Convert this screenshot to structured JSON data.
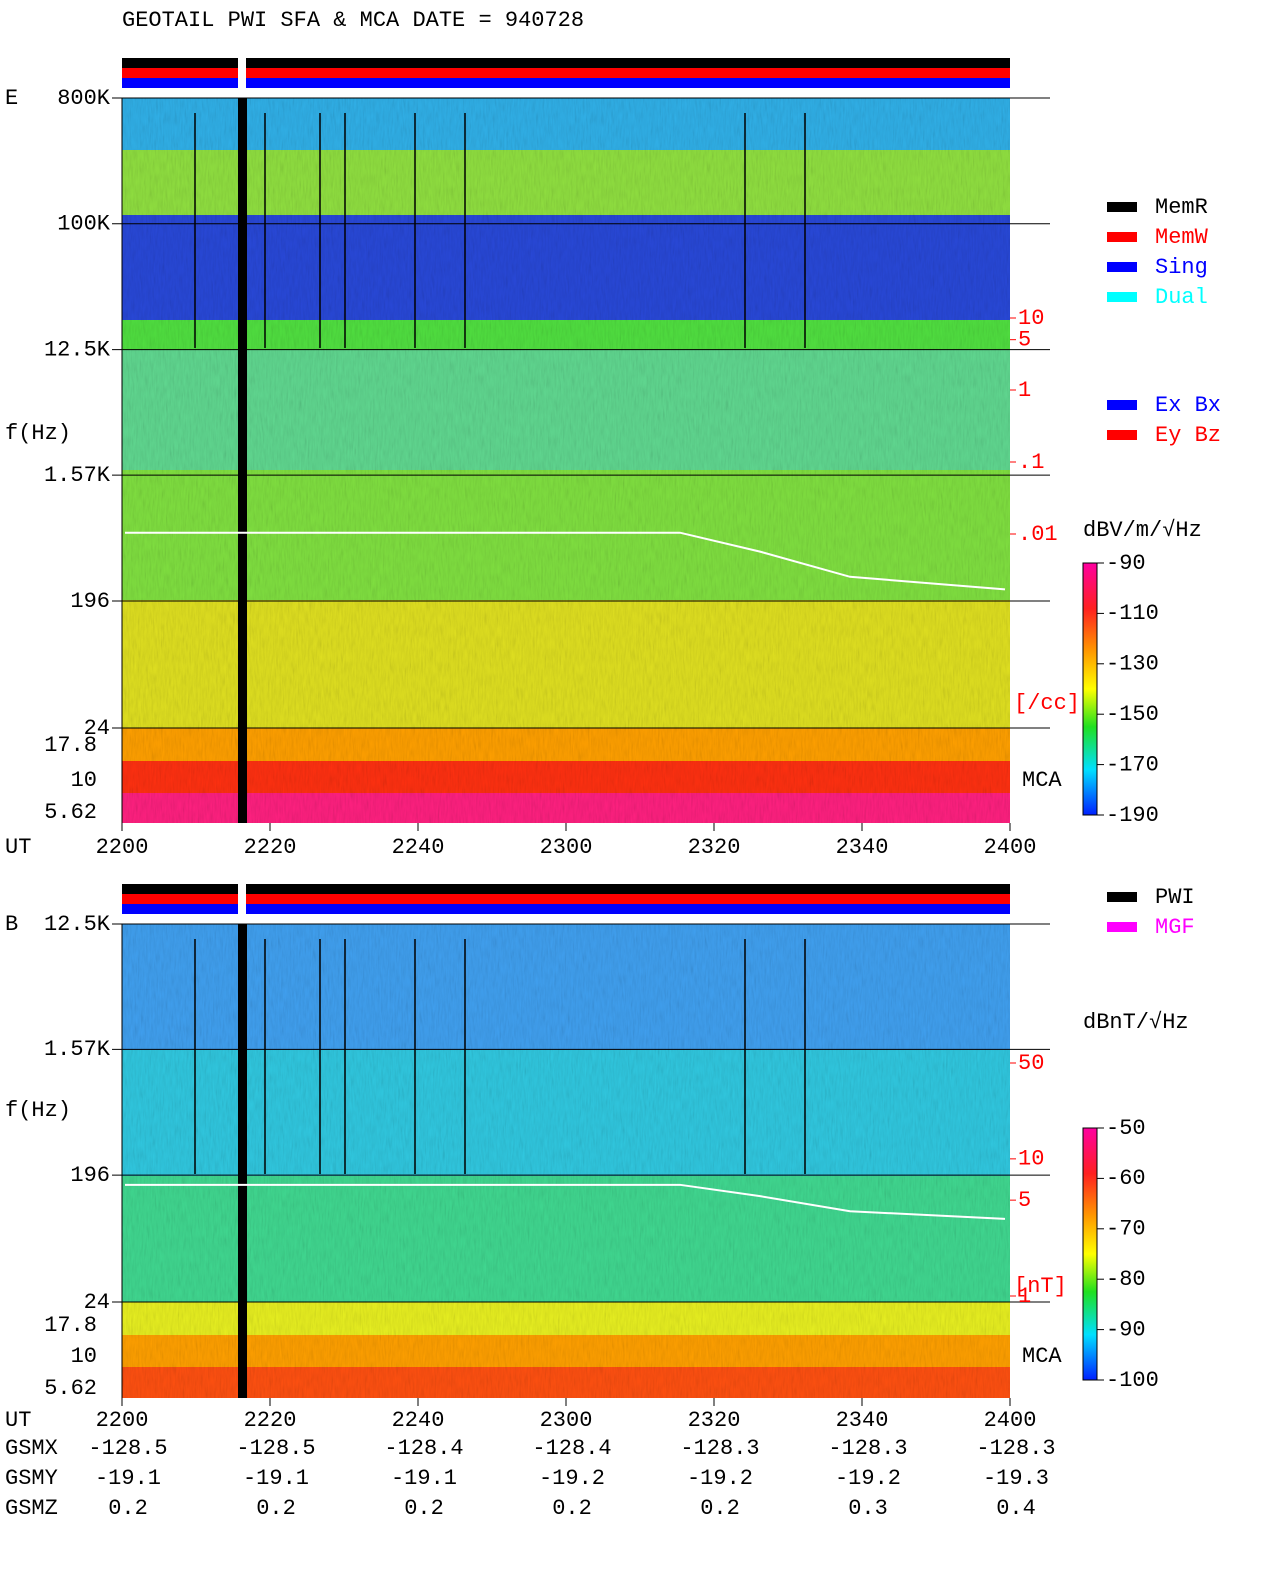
{
  "title": "GEOTAIL  PWI SFA & MCA   DATE = 940728",
  "chart_data": [
    {
      "type": "spectrogram",
      "panel_label": "E",
      "y_label": "f(Hz)",
      "x_label": "UT",
      "log_y": true,
      "ylim": [
        24,
        800000
      ],
      "yticks": [
        {
          "value": 800000,
          "label": "800K"
        },
        {
          "value": 100000,
          "label": "100K"
        },
        {
          "value": 12500,
          "label": "12.5K"
        },
        {
          "value": 1570,
          "label": "1.57K"
        },
        196,
        24
      ],
      "x_tick_labels": [
        "2200",
        "2220",
        "2240",
        "2300",
        "2320",
        "2340",
        "2400"
      ],
      "mca_label": "MCA",
      "mca_channels": [
        17.8,
        10,
        5.62
      ],
      "colorbar": {
        "label": "dBV/m/√Hz",
        "lim": [
          -190,
          -90
        ],
        "ticks": [
          -90,
          -110,
          -130,
          -150,
          -170,
          -190
        ]
      },
      "density": {
        "label": "[/cc]",
        "log": true,
        "lim": [
          0.01,
          10
        ],
        "ticks": [
          10,
          5,
          1,
          {
            "value": 0.1,
            "label": ".1"
          },
          {
            "value": 0.01,
            "label": ".01"
          }
        ]
      },
      "legend": [
        {
          "name": "MemR",
          "color": "#000000"
        },
        {
          "name": "MemW",
          "color": "#ff0000"
        },
        {
          "name": "Sing",
          "color": "#0000ff"
        },
        {
          "name": "Dual",
          "color": "#00ffff"
        }
      ],
      "legend2": [
        {
          "name": "Ex Bx",
          "color": "#0000ff"
        },
        {
          "name": "Ey Bz",
          "color": "#ff0000"
        }
      ]
    },
    {
      "type": "spectrogram",
      "panel_label": "B",
      "y_label": "f(Hz)",
      "x_label": "UT",
      "log_y": true,
      "ylim": [
        24,
        12500
      ],
      "yticks": [
        {
          "value": 12500,
          "label": "12.5K"
        },
        {
          "value": 1570,
          "label": "1.57K"
        },
        196,
        24
      ],
      "x_tick_labels": [
        "2200",
        "2220",
        "2240",
        "2300",
        "2320",
        "2340",
        "2400"
      ],
      "mca_label": "MCA",
      "mca_channels": [
        17.8,
        10,
        5.62
      ],
      "colorbar": {
        "label": "dBnT/√Hz",
        "lim": [
          -100,
          -50
        ],
        "ticks": [
          -50,
          -60,
          -70,
          -80,
          -90,
          -100
        ]
      },
      "density": {
        "label": "[nT]",
        "log": true,
        "lim": [
          1,
          50
        ],
        "ticks": [
          50,
          10,
          5,
          1
        ]
      },
      "legend": [
        {
          "name": "PWI",
          "color": "#000000"
        },
        {
          "name": "MGF",
          "color": "#ff00ff"
        }
      ]
    }
  ],
  "orbit": [
    {
      "name": "GSMX",
      "values": [
        -128.5,
        -128.5,
        -128.4,
        -128.4,
        -128.3,
        -128.3,
        -128.3
      ]
    },
    {
      "name": "GSMY",
      "values": [
        -19.1,
        -19.1,
        -19.1,
        -19.2,
        -19.2,
        -19.2,
        -19.3
      ]
    },
    {
      "name": "GSMZ",
      "values": [
        0.2,
        0.2,
        0.2,
        0.2,
        0.2,
        0.3,
        0.4
      ]
    }
  ]
}
